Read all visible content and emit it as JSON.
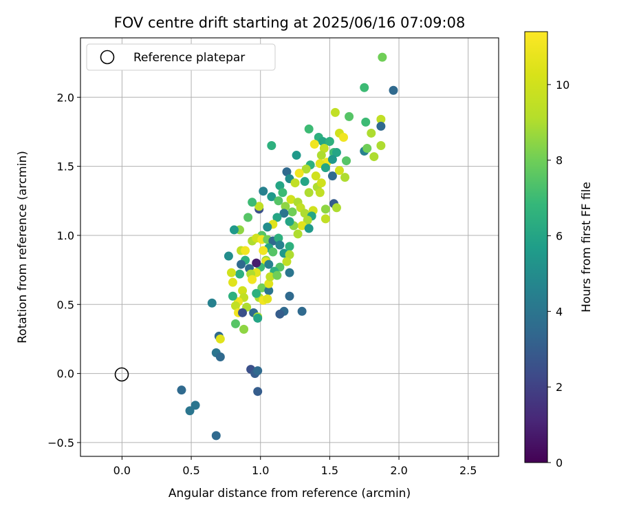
{
  "chart_data": {
    "type": "scatter",
    "title": "FOV centre drift starting at 2025/06/16 07:09:08",
    "xlabel": "Angular distance from reference (arcmin)",
    "ylabel": "Rotation from reference (arcmin)",
    "xlim": [
      -0.3,
      2.72
    ],
    "ylim": [
      -0.6,
      2.43
    ],
    "xticks": [
      "0.0",
      "0.5",
      "1.0",
      "1.5",
      "2.0",
      "2.5"
    ],
    "yticks": [
      "−0.5",
      "0.0",
      "0.5",
      "1.0",
      "1.5",
      "2.0"
    ],
    "grid": true,
    "legend": {
      "placement": "top-left",
      "entries": [
        "Reference platepar"
      ]
    },
    "reference_point": {
      "x": 0.0,
      "y": 0.0,
      "marker": "open-circle"
    },
    "colorbar": {
      "label": "Hours from first FF file",
      "range": [
        0,
        11.4
      ],
      "ticks": [
        "0",
        "2",
        "4",
        "6",
        "8",
        "10"
      ],
      "colormap": "viridis"
    },
    "points_xyh": [
      [
        1.88,
        2.29,
        8.0
      ],
      [
        1.96,
        2.05,
        3.5
      ],
      [
        1.75,
        2.07,
        7.0
      ],
      [
        1.87,
        1.84,
        9.5
      ],
      [
        1.87,
        1.79,
        3.5
      ],
      [
        1.76,
        1.82,
        7.0
      ],
      [
        1.64,
        1.86,
        7.5
      ],
      [
        1.54,
        1.89,
        9.5
      ],
      [
        1.57,
        1.74,
        10.0
      ],
      [
        1.6,
        1.71,
        11.0
      ],
      [
        1.8,
        1.74,
        9.0
      ],
      [
        1.75,
        1.61,
        4.5
      ],
      [
        1.77,
        1.63,
        8.0
      ],
      [
        1.87,
        1.65,
        9.0
      ],
      [
        1.82,
        1.57,
        9.0
      ],
      [
        1.35,
        1.77,
        7.0
      ],
      [
        1.42,
        1.71,
        6.5
      ],
      [
        1.45,
        1.68,
        6.0
      ],
      [
        1.5,
        1.68,
        6.5
      ],
      [
        1.53,
        1.6,
        7.0
      ],
      [
        1.46,
        1.63,
        9.5
      ],
      [
        1.39,
        1.66,
        11.0
      ],
      [
        1.44,
        1.58,
        9.0
      ],
      [
        1.55,
        1.6,
        6.0
      ],
      [
        1.57,
        1.47,
        10.0
      ],
      [
        1.62,
        1.54,
        7.5
      ],
      [
        1.61,
        1.42,
        9.0
      ],
      [
        1.52,
        1.43,
        3.5
      ],
      [
        1.48,
        1.53,
        11.0
      ],
      [
        1.43,
        1.52,
        10.5
      ],
      [
        1.47,
        1.49,
        6.0
      ],
      [
        1.52,
        1.55,
        5.5
      ],
      [
        1.36,
        1.51,
        6.5
      ],
      [
        1.4,
        1.43,
        10.0
      ],
      [
        1.33,
        1.48,
        9.0
      ],
      [
        1.28,
        1.45,
        11.0
      ],
      [
        1.26,
        1.58,
        5.5
      ],
      [
        1.19,
        1.46,
        3.5
      ],
      [
        1.21,
        1.41,
        5.0
      ],
      [
        1.25,
        1.38,
        9.5
      ],
      [
        1.32,
        1.39,
        6.0
      ],
      [
        1.41,
        1.35,
        9.0
      ],
      [
        1.44,
        1.38,
        10.0
      ],
      [
        1.35,
        1.31,
        9.0
      ],
      [
        1.43,
        1.31,
        9.5
      ],
      [
        1.53,
        1.23,
        3.0
      ],
      [
        1.55,
        1.2,
        9.0
      ],
      [
        1.47,
        1.19,
        8.5
      ],
      [
        1.47,
        1.12,
        9.5
      ],
      [
        1.08,
        1.65,
        6.5
      ],
      [
        1.14,
        1.36,
        6.0
      ],
      [
        1.16,
        1.31,
        7.0
      ],
      [
        1.02,
        1.32,
        4.5
      ],
      [
        1.08,
        1.28,
        5.5
      ],
      [
        1.13,
        1.25,
        7.5
      ],
      [
        1.18,
        1.21,
        8.5
      ],
      [
        1.22,
        1.26,
        10.0
      ],
      [
        1.27,
        1.24,
        9.0
      ],
      [
        1.29,
        1.2,
        9.5
      ],
      [
        1.23,
        1.17,
        8.0
      ],
      [
        1.32,
        1.16,
        9.0
      ],
      [
        1.38,
        1.18,
        10.0
      ],
      [
        1.37,
        1.14,
        6.0
      ],
      [
        1.34,
        1.11,
        9.0
      ],
      [
        1.3,
        1.07,
        10.5
      ],
      [
        1.35,
        1.05,
        5.5
      ],
      [
        1.27,
        1.01,
        9.0
      ],
      [
        1.24,
        1.07,
        8.5
      ],
      [
        1.21,
        1.1,
        6.0
      ],
      [
        1.17,
        1.16,
        4.0
      ],
      [
        1.12,
        1.13,
        6.0
      ],
      [
        1.09,
        1.08,
        10.5
      ],
      [
        1.05,
        1.06,
        5.0
      ],
      [
        1.01,
        1.0,
        7.5
      ],
      [
        0.99,
        1.19,
        2.5
      ],
      [
        0.99,
        1.21,
        9.5
      ],
      [
        0.94,
        1.24,
        7.0
      ],
      [
        0.91,
        1.13,
        7.5
      ],
      [
        0.85,
        1.04,
        8.5
      ],
      [
        0.81,
        1.04,
        5.5
      ],
      [
        0.86,
        0.89,
        9.5
      ],
      [
        0.89,
        0.89,
        11.0
      ],
      [
        0.94,
        0.96,
        9.0
      ],
      [
        0.97,
        0.98,
        10.0
      ],
      [
        1.01,
        0.97,
        11.0
      ],
      [
        1.05,
        0.97,
        8.0
      ],
      [
        1.09,
        0.96,
        3.5
      ],
      [
        1.13,
        0.98,
        6.5
      ],
      [
        1.06,
        0.91,
        6.0
      ],
      [
        1.02,
        0.89,
        11.0
      ],
      [
        1.04,
        0.82,
        8.5
      ],
      [
        1.04,
        0.81,
        10.5
      ],
      [
        1.09,
        0.88,
        7.5
      ],
      [
        1.14,
        0.93,
        4.5
      ],
      [
        1.17,
        0.87,
        5.5
      ],
      [
        1.21,
        0.92,
        6.5
      ],
      [
        1.21,
        0.86,
        9.0
      ],
      [
        1.19,
        0.81,
        9.5
      ],
      [
        1.14,
        0.77,
        7.5
      ],
      [
        1.1,
        0.74,
        6.5
      ],
      [
        1.06,
        0.79,
        4.5
      ],
      [
        1.0,
        0.77,
        7.0
      ],
      [
        0.97,
        0.8,
        0.8
      ],
      [
        0.92,
        0.76,
        3.5
      ],
      [
        0.89,
        0.82,
        6.5
      ],
      [
        0.97,
        0.73,
        10.5
      ],
      [
        0.93,
        0.72,
        9.0
      ],
      [
        0.85,
        0.72,
        6.5
      ],
      [
        0.86,
        0.79,
        3.5
      ],
      [
        0.77,
        0.85,
        5.0
      ],
      [
        0.94,
        0.68,
        11.0
      ],
      [
        0.87,
        0.6,
        10.0
      ],
      [
        0.88,
        0.55,
        9.5
      ],
      [
        0.84,
        0.52,
        11.0
      ],
      [
        0.8,
        0.56,
        6.5
      ],
      [
        0.79,
        0.73,
        10.0
      ],
      [
        0.8,
        0.66,
        10.5
      ],
      [
        0.82,
        0.49,
        9.5
      ],
      [
        0.84,
        0.44,
        11.0
      ],
      [
        0.9,
        0.48,
        9.0
      ],
      [
        0.95,
        0.44,
        3.5
      ],
      [
        0.87,
        0.44,
        2.5
      ],
      [
        0.99,
        0.55,
        9.0
      ],
      [
        1.01,
        0.62,
        8.0
      ],
      [
        1.06,
        0.6,
        4.0
      ],
      [
        1.06,
        0.65,
        10.5
      ],
      [
        1.07,
        0.7,
        9.5
      ],
      [
        1.12,
        0.71,
        8.0
      ],
      [
        1.21,
        0.73,
        4.0
      ],
      [
        1.02,
        0.53,
        11.0
      ],
      [
        1.05,
        0.54,
        10.5
      ],
      [
        0.97,
        0.58,
        6.5
      ],
      [
        0.98,
        0.41,
        9.0
      ],
      [
        0.98,
        0.4,
        6.0
      ],
      [
        0.82,
        0.36,
        7.5
      ],
      [
        0.88,
        0.32,
        8.5
      ],
      [
        0.7,
        0.27,
        3.5
      ],
      [
        0.71,
        0.25,
        10.5
      ],
      [
        0.65,
        0.51,
        4.5
      ],
      [
        0.68,
        0.15,
        4.0
      ],
      [
        0.71,
        0.12,
        3.5
      ],
      [
        1.21,
        0.56,
        3.5
      ],
      [
        1.17,
        0.45,
        3.5
      ],
      [
        1.14,
        0.43,
        3.0
      ],
      [
        1.3,
        0.45,
        3.5
      ],
      [
        0.93,
        0.03,
        2.5
      ],
      [
        0.96,
        0.0,
        3.0
      ],
      [
        0.98,
        0.02,
        3.5
      ],
      [
        0.98,
        -0.13,
        3.0
      ],
      [
        0.43,
        -0.12,
        3.5
      ],
      [
        0.53,
        -0.23,
        4.0
      ],
      [
        0.49,
        -0.27,
        4.0
      ],
      [
        0.68,
        -0.45,
        3.5
      ]
    ]
  }
}
